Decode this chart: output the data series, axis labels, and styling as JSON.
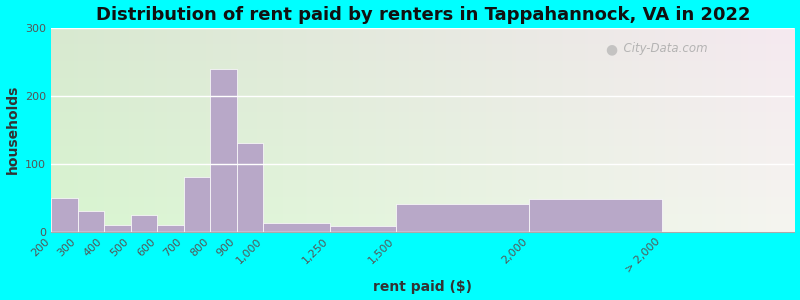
{
  "title": "Distribution of rent paid by renters in Tappahannock, VA in 2022",
  "xlabel": "rent paid ($)",
  "ylabel": "households",
  "bar_color": "#b8a8c8",
  "bar_edge_color": "#ffffff",
  "background_color": "#00ffff",
  "ylim": [
    0,
    300
  ],
  "yticks": [
    0,
    100,
    200,
    300
  ],
  "bin_lefts": [
    200,
    300,
    400,
    500,
    600,
    700,
    800,
    900,
    1000,
    1250,
    1500,
    2000,
    2500
  ],
  "bin_rights": [
    300,
    400,
    500,
    600,
    700,
    800,
    900,
    1000,
    1250,
    1500,
    2000,
    2500,
    3000
  ],
  "values": [
    50,
    30,
    10,
    25,
    10,
    80,
    240,
    130,
    13,
    8,
    40,
    48,
    0
  ],
  "tick_positions": [
    200,
    300,
    400,
    500,
    600,
    700,
    800,
    900,
    1000,
    1250,
    1500,
    2000,
    2500
  ],
  "tick_labels": [
    "200",
    "300",
    "400",
    "500",
    "600",
    "700",
    "800",
    "900",
    "1,000",
    "1,250",
    "1,500",
    "2,000",
    "> 2,000"
  ],
  "watermark": "City-Data.com",
  "title_fontsize": 13,
  "axis_label_fontsize": 10,
  "tick_fontsize": 8
}
